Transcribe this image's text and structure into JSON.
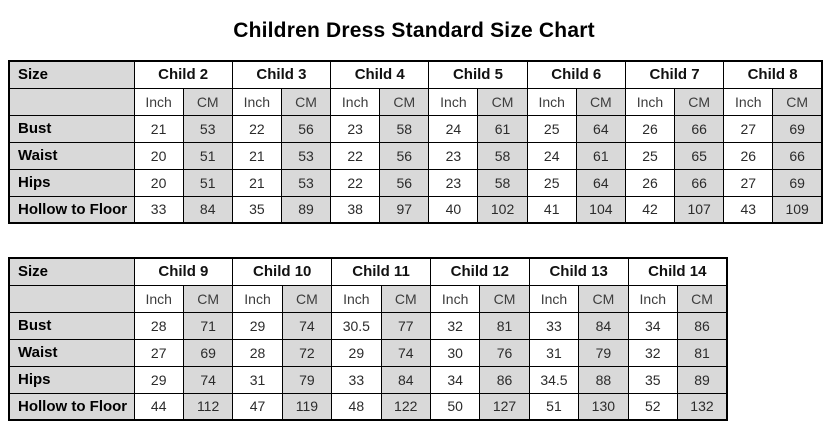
{
  "page": {
    "title": "Children Dress Standard Size Chart"
  },
  "colors": {
    "shaded_cell_bg": "#d9d9d9",
    "plain_cell_bg": "#ffffff",
    "border": "#000000",
    "title_text": "#000000",
    "value_text": "#2b2b2b"
  },
  "chart_data": [
    {
      "type": "table",
      "title": "Children Dress Standard Size Chart",
      "size_label": "Size",
      "unit_labels": [
        "Inch",
        "CM"
      ],
      "columns": [
        "Child 2",
        "Child 3",
        "Child 4",
        "Child 5",
        "Child 6",
        "Child 7",
        "Child 8"
      ],
      "rows": [
        {
          "label": "Bust",
          "inch": [
            21,
            22,
            23,
            24,
            25,
            26,
            27
          ],
          "cm": [
            53,
            56,
            58,
            61,
            64,
            66,
            69
          ]
        },
        {
          "label": "Waist",
          "inch": [
            20,
            21,
            22,
            23,
            24,
            25,
            26
          ],
          "cm": [
            51,
            53,
            56,
            58,
            61,
            65,
            66
          ]
        },
        {
          "label": "Hips",
          "inch": [
            20,
            21,
            22,
            23,
            25,
            26,
            27
          ],
          "cm": [
            51,
            53,
            56,
            58,
            64,
            66,
            69
          ]
        },
        {
          "label": "Hollow to Floor",
          "inch": [
            33,
            35,
            38,
            40,
            41,
            42,
            43
          ],
          "cm": [
            84,
            89,
            97,
            102,
            104,
            107,
            109
          ]
        }
      ]
    },
    {
      "type": "table",
      "title": "Children Dress Standard Size Chart",
      "size_label": "Size",
      "unit_labels": [
        "Inch",
        "CM"
      ],
      "columns": [
        "Child 9",
        "Child 10",
        "Child 11",
        "Child 12",
        "Child 13",
        "Child 14"
      ],
      "rows": [
        {
          "label": "Bust",
          "inch": [
            28,
            29,
            30.5,
            32,
            33,
            34
          ],
          "cm": [
            71,
            74,
            77,
            81,
            84,
            86
          ]
        },
        {
          "label": "Waist",
          "inch": [
            27,
            28,
            29,
            30,
            31,
            32
          ],
          "cm": [
            69,
            72,
            74,
            76,
            79,
            81
          ]
        },
        {
          "label": "Hips",
          "inch": [
            29,
            31,
            33,
            34,
            34.5,
            35
          ],
          "cm": [
            74,
            79,
            84,
            86,
            88,
            89
          ]
        },
        {
          "label": "Hollow to Floor",
          "inch": [
            44,
            47,
            48,
            50,
            51,
            52
          ],
          "cm": [
            112,
            119,
            122,
            127,
            130,
            132
          ]
        }
      ]
    }
  ]
}
